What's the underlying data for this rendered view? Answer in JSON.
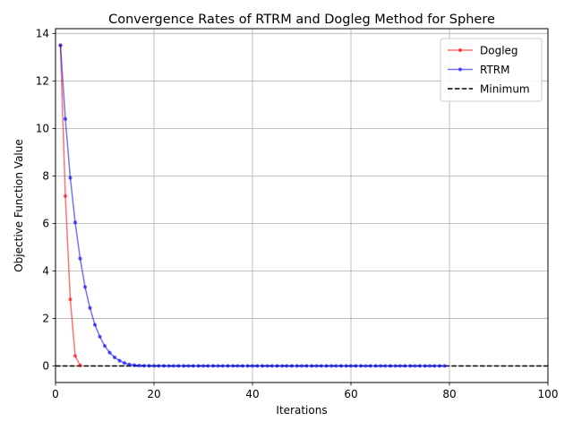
{
  "chart_data": {
    "type": "line",
    "title": "Convergence Rates of RTRM and Dogleg Method for Sphere",
    "xlabel": "Iterations",
    "ylabel": "Objective Function Value",
    "xlim": [
      0,
      100
    ],
    "ylim": [
      -0.7,
      14.2
    ],
    "xticks": [
      0,
      20,
      40,
      60,
      80,
      100
    ],
    "yticks": [
      0,
      2,
      4,
      6,
      8,
      10,
      12,
      14
    ],
    "grid": true,
    "legend_position": "top-right",
    "series": [
      {
        "name": "Dogleg",
        "color": "#ff0000",
        "x": [
          1,
          2,
          3,
          4,
          5
        ],
        "y": [
          13.5,
          7.15,
          2.8,
          0.42,
          0.02
        ]
      },
      {
        "name": "RTRM",
        "color": "#0000ff",
        "x": [
          1,
          2,
          3,
          4,
          5,
          6,
          7,
          8,
          9,
          10,
          11,
          12,
          13,
          14,
          15,
          16,
          17,
          18,
          19,
          20,
          21,
          22,
          23,
          24,
          25,
          26,
          27,
          28,
          29,
          30,
          31,
          32,
          33,
          34,
          35,
          36,
          37,
          38,
          39,
          40,
          41,
          42,
          43,
          44,
          45,
          46,
          47,
          48,
          49,
          50,
          51,
          52,
          53,
          54,
          55,
          56,
          57,
          58,
          59,
          60,
          61,
          62,
          63,
          64,
          65,
          66,
          67,
          68,
          69,
          70,
          71,
          72,
          73,
          74,
          75,
          76,
          77,
          78,
          79
        ],
        "y": [
          13.5,
          10.4,
          7.92,
          6.04,
          4.52,
          3.32,
          2.44,
          1.73,
          1.23,
          0.84,
          0.56,
          0.36,
          0.22,
          0.12,
          0.06,
          0.03,
          0.015,
          0.008,
          0.004,
          0.002,
          0.001,
          0.001,
          0,
          0,
          0,
          0,
          0,
          0,
          0,
          0,
          0,
          0,
          0,
          0,
          0,
          0,
          0,
          0,
          0,
          0,
          0,
          0,
          0,
          0,
          0,
          0,
          0,
          0,
          0,
          0,
          0,
          0,
          0,
          0,
          0,
          0,
          0,
          0,
          0,
          0,
          0,
          0,
          0,
          0,
          0,
          0,
          0,
          0,
          0,
          0,
          0,
          0,
          0,
          0,
          0,
          0,
          0,
          0,
          0
        ]
      }
    ],
    "reference_lines": [
      {
        "name": "Minimum",
        "y": 0,
        "color": "#000000",
        "style": "dashed"
      }
    ]
  }
}
